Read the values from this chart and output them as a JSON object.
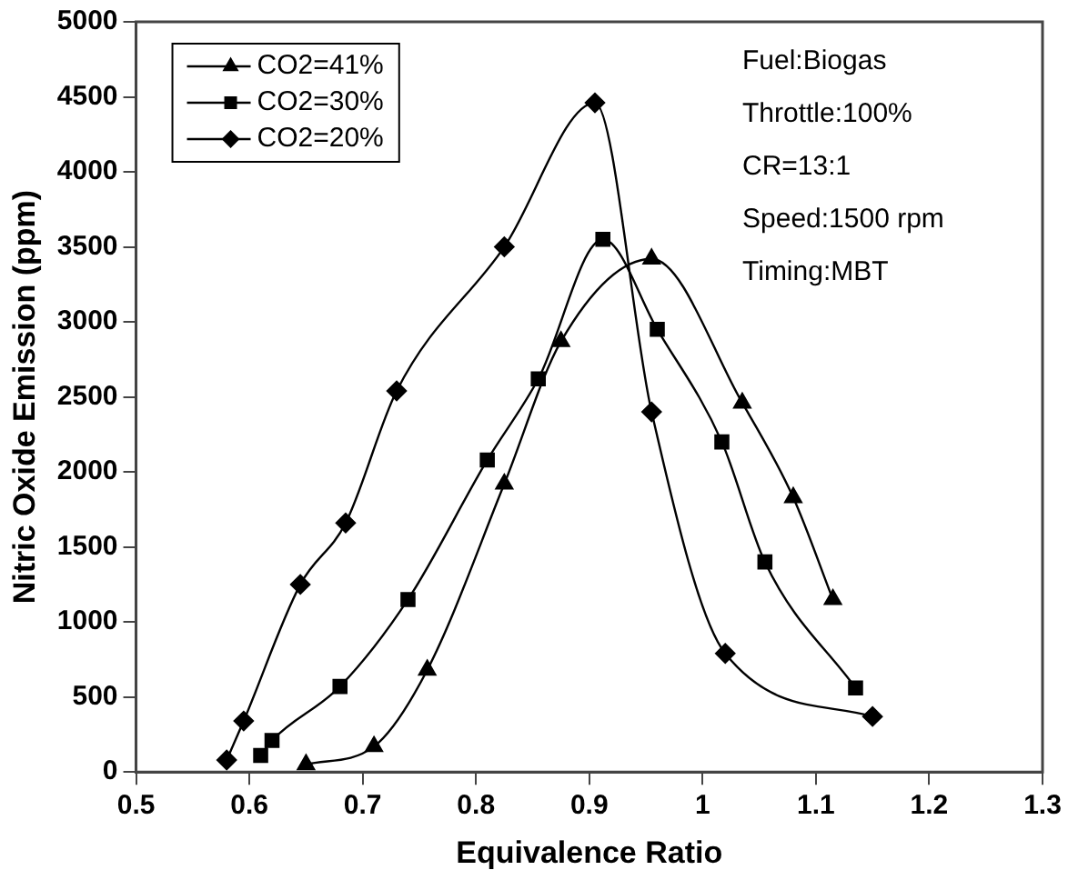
{
  "chart_data": {
    "type": "line",
    "xlabel": "Equivalence Ratio",
    "ylabel": "Nitric Oxide Emission (ppm)",
    "xlim": [
      0.5,
      1.3
    ],
    "xticks": [
      0.5,
      0.6,
      0.7,
      0.8,
      0.9,
      1,
      1.1,
      1.2,
      1.3
    ],
    "ylim": [
      0,
      5000
    ],
    "yticks": [
      0,
      500,
      1000,
      1500,
      2000,
      2500,
      3000,
      3500,
      4000,
      4500,
      5000
    ],
    "grid": false,
    "legend": "top left",
    "line_style": "solid",
    "annotations": [
      "Fuel:Biogas",
      "Throttle:100%",
      "CR=13:1",
      "Speed:1500 rpm",
      "Timing:MBT"
    ],
    "series": [
      {
        "name": "CO2=41%",
        "color": "#000000",
        "marker": "triangle",
        "x": [
          0.65,
          0.71,
          0.757,
          0.825,
          0.875,
          0.955,
          1.035,
          1.08,
          1.115
        ],
        "values": [
          50,
          170,
          680,
          1920,
          2870,
          3420,
          2460,
          1830,
          1150
        ]
      },
      {
        "name": "CO2=30%",
        "color": "#000000",
        "marker": "square",
        "x": [
          0.61,
          0.62,
          0.68,
          0.74,
          0.81,
          0.855,
          0.912,
          0.96,
          1.017,
          1.055,
          1.135
        ],
        "values": [
          110,
          210,
          570,
          1150,
          2080,
          2620,
          3550,
          2950,
          2200,
          1400,
          560
        ]
      },
      {
        "name": "CO2=20%",
        "color": "#000000",
        "marker": "diamond",
        "x": [
          0.58,
          0.595,
          0.645,
          0.685,
          0.73,
          0.825,
          0.905,
          0.955,
          1.02,
          1.15
        ],
        "values": [
          80,
          340,
          1250,
          1660,
          2540,
          3500,
          4460,
          2400,
          790,
          370
        ]
      }
    ]
  }
}
